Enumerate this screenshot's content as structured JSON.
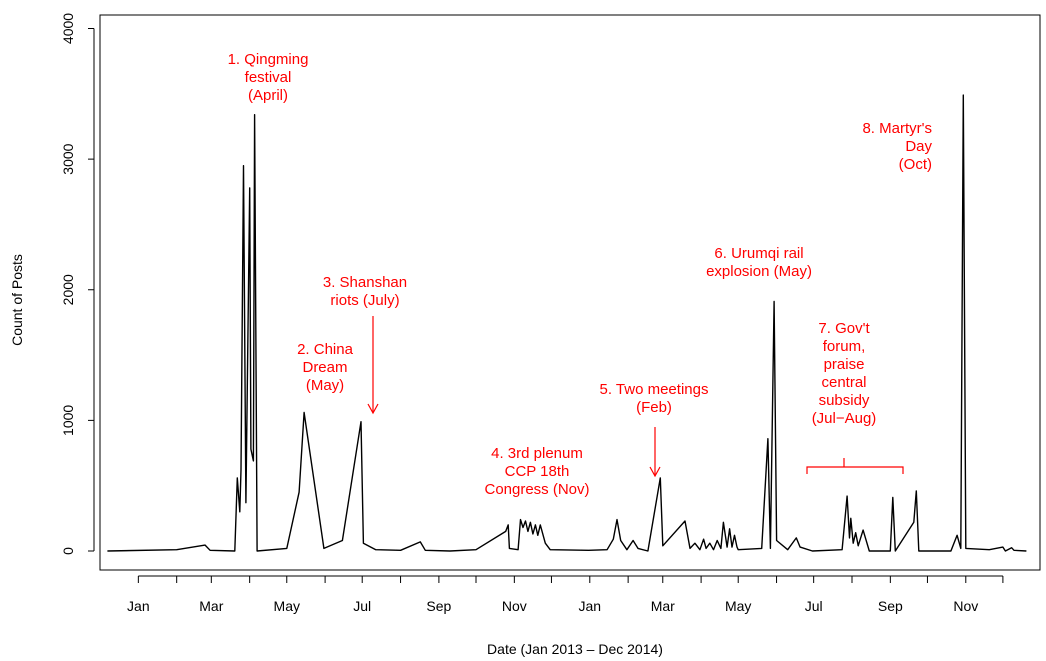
{
  "chart_data": {
    "type": "line",
    "title": "",
    "xlabel": "Date (Jan 2013 – Dec 2014)",
    "ylabel": "Count of Posts",
    "ylim": [
      0,
      4000
    ],
    "y_ticks": [
      "0",
      "1000",
      "2000",
      "3000",
      "4000"
    ],
    "x_ticks": [
      "Jan",
      "Mar",
      "May",
      "Jul",
      "Sep",
      "Nov",
      "Jan",
      "Mar",
      "May",
      "Jul",
      "Sep",
      "Nov"
    ],
    "line_color": "#000000",
    "annotation_color": "#ff0000",
    "x_range": [
      "2012-12-01",
      "2014-12-31"
    ],
    "series": [
      {
        "points": [
          [
            "2012-12-07",
            0
          ],
          [
            "2013-02-01",
            10
          ],
          [
            "2013-02-24",
            45
          ],
          [
            "2013-02-28",
            5
          ],
          [
            "2013-03-20",
            0
          ],
          [
            "2013-03-22",
            560
          ],
          [
            "2013-03-24",
            300
          ],
          [
            "2013-03-25",
            620
          ],
          [
            "2013-03-27",
            2950
          ],
          [
            "2013-03-29",
            370
          ],
          [
            "2013-04-01",
            2780
          ],
          [
            "2013-04-02",
            780
          ],
          [
            "2013-04-04",
            690
          ],
          [
            "2013-04-05",
            3340
          ],
          [
            "2013-04-07",
            0
          ],
          [
            "2013-05-01",
            20
          ],
          [
            "2013-05-11",
            450
          ],
          [
            "2013-05-15",
            1060
          ],
          [
            "2013-05-31",
            20
          ],
          [
            "2013-06-15",
            80
          ],
          [
            "2013-06-30",
            990
          ],
          [
            "2013-07-02",
            60
          ],
          [
            "2013-07-12",
            10
          ],
          [
            "2013-08-01",
            5
          ],
          [
            "2013-08-17",
            70
          ],
          [
            "2013-08-21",
            5
          ],
          [
            "2013-09-10",
            0
          ],
          [
            "2013-10-01",
            10
          ],
          [
            "2013-10-25",
            150
          ],
          [
            "2013-10-27",
            200
          ],
          [
            "2013-10-28",
            20
          ],
          [
            "2013-11-04",
            10
          ],
          [
            "2013-11-06",
            240
          ],
          [
            "2013-11-08",
            180
          ],
          [
            "2013-11-10",
            230
          ],
          [
            "2013-11-12",
            150
          ],
          [
            "2013-11-14",
            220
          ],
          [
            "2013-11-16",
            130
          ],
          [
            "2013-11-18",
            200
          ],
          [
            "2013-11-20",
            120
          ],
          [
            "2013-11-22",
            200
          ],
          [
            "2013-11-26",
            60
          ],
          [
            "2013-11-30",
            10
          ],
          [
            "2013-12-31",
            5
          ],
          [
            "2014-01-15",
            10
          ],
          [
            "2014-01-20",
            90
          ],
          [
            "2014-01-23",
            240
          ],
          [
            "2014-01-26",
            80
          ],
          [
            "2014-01-31",
            10
          ],
          [
            "2014-02-05",
            80
          ],
          [
            "2014-02-09",
            20
          ],
          [
            "2014-02-17",
            0
          ],
          [
            "2014-02-27",
            560
          ],
          [
            "2014-03-01",
            40
          ],
          [
            "2014-03-19",
            230
          ],
          [
            "2014-03-23",
            20
          ],
          [
            "2014-03-27",
            60
          ],
          [
            "2014-03-31",
            10
          ],
          [
            "2014-04-03",
            90
          ],
          [
            "2014-04-05",
            20
          ],
          [
            "2014-04-08",
            60
          ],
          [
            "2014-04-11",
            10
          ],
          [
            "2014-04-14",
            80
          ],
          [
            "2014-04-17",
            20
          ],
          [
            "2014-04-19",
            220
          ],
          [
            "2014-04-22",
            30
          ],
          [
            "2014-04-24",
            170
          ],
          [
            "2014-04-26",
            30
          ],
          [
            "2014-04-28",
            120
          ],
          [
            "2014-04-30",
            30
          ],
          [
            "2014-05-01",
            10
          ],
          [
            "2014-05-20",
            20
          ],
          [
            "2014-05-25",
            860
          ],
          [
            "2014-05-27",
            20
          ],
          [
            "2014-05-30",
            1910
          ],
          [
            "2014-06-01",
            80
          ],
          [
            "2014-06-10",
            10
          ],
          [
            "2014-06-17",
            100
          ],
          [
            "2014-06-20",
            30
          ],
          [
            "2014-06-30",
            0
          ],
          [
            "2014-07-24",
            10
          ],
          [
            "2014-07-28",
            420
          ],
          [
            "2014-07-30",
            100
          ],
          [
            "2014-07-31",
            250
          ],
          [
            "2014-08-02",
            60
          ],
          [
            "2014-08-04",
            140
          ],
          [
            "2014-08-06",
            40
          ],
          [
            "2014-08-10",
            160
          ],
          [
            "2014-08-15",
            0
          ],
          [
            "2014-09-01",
            0
          ],
          [
            "2014-09-03",
            410
          ],
          [
            "2014-09-05",
            0
          ],
          [
            "2014-09-20",
            220
          ],
          [
            "2014-09-22",
            460
          ],
          [
            "2014-09-24",
            0
          ],
          [
            "2014-10-20",
            0
          ],
          [
            "2014-10-25",
            120
          ],
          [
            "2014-10-28",
            20
          ],
          [
            "2014-10-30",
            3490
          ],
          [
            "2014-11-01",
            20
          ],
          [
            "2014-11-20",
            10
          ],
          [
            "2014-12-01",
            30
          ],
          [
            "2014-12-03",
            0
          ],
          [
            "2014-12-08",
            25
          ],
          [
            "2014-12-10",
            5
          ],
          [
            "2014-12-20",
            0
          ]
        ]
      }
    ],
    "annotations": [
      {
        "lines": [
          "1. Qingming",
          "festival",
          "(April)"
        ]
      },
      {
        "lines": [
          "2. China",
          "Dream",
          "(May)"
        ]
      },
      {
        "lines": [
          "3. Shanshan",
          "riots (July)"
        ]
      },
      {
        "lines": [
          "4. 3rd plenum",
          "CCP 18th",
          "Congress (Nov)"
        ]
      },
      {
        "lines": [
          "5. Two meetings",
          "(Feb)"
        ]
      },
      {
        "lines": [
          "6. Urumqi rail",
          "explosion (May)"
        ]
      },
      {
        "lines": [
          "7. Gov't",
          "forum,",
          "praise",
          "central",
          "subsidy",
          "(Jul−Aug)"
        ]
      },
      {
        "lines": [
          "8. Martyr's",
          "Day",
          "(Oct)"
        ]
      }
    ]
  }
}
